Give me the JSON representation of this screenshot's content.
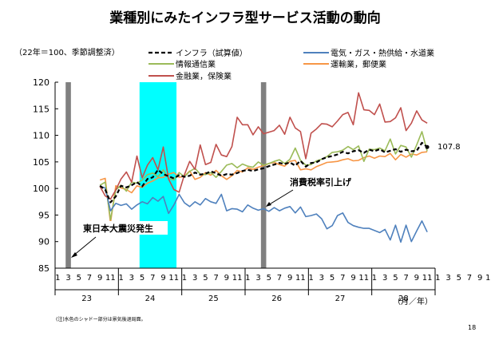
{
  "chart_data": {
    "type": "line",
    "title": "業種別にみたインフラ型サービス活動の動向",
    "subtitle": "（22年＝100、季節調整済）",
    "x_label": "（月／年）",
    "ylim": [
      85,
      120
    ],
    "yticks": [
      "85",
      "90",
      "95",
      "100",
      "105",
      "110",
      "115",
      "120"
    ],
    "month_ticks": [
      "1",
      "3",
      "5",
      "7",
      "9",
      "11",
      "1",
      "3",
      "5",
      "7",
      "9",
      "11",
      "1",
      "3",
      "5",
      "7",
      "9",
      "11",
      "1",
      "3",
      "5",
      "7",
      "9",
      "11",
      "1",
      "3",
      "5",
      "7",
      "9",
      "11",
      "1",
      "3",
      "5",
      "7",
      "9",
      "11",
      "1",
      "3",
      "5",
      "7",
      "9",
      "11"
    ],
    "year_labels": [
      "23",
      "24",
      "25",
      "26",
      "27",
      "28"
    ],
    "grid": false,
    "legend_position": "top",
    "annotations": {
      "earthquake": "東日本大震災発生",
      "tax": "消費税率引上げ",
      "end_value": "107.8"
    },
    "footnote": "(注)水色のシャドー部分は景気後退局面。",
    "page_number": "18",
    "shaded_periods": [
      {
        "kind": "event",
        "color": "#808080",
        "start_index": 2,
        "end_index": 2
      },
      {
        "kind": "recession",
        "color": "#00FFFF",
        "start_index": 16,
        "end_index": 22
      },
      {
        "kind": "event",
        "color": "#808080",
        "start_index": 39,
        "end_index": 39
      }
    ],
    "series": [
      {
        "name": "インフラ（試算値）",
        "color": "#000000",
        "dashed": true,
        "values": [
          100.5,
          99.8,
          97.4,
          98.5,
          100.5,
          100.2,
          100.6,
          101.2,
          100.4,
          101.8,
          102.1,
          103.5,
          102.7,
          102.3,
          101.9,
          102.5,
          102.2,
          102.4,
          103.0,
          102.6,
          102.8,
          103.2,
          102.9,
          102.4,
          102.7,
          102.6,
          102.9,
          103.3,
          103.5,
          103.3,
          103.6,
          103.8,
          104.2,
          104.5,
          104.8,
          104.6,
          104.9,
          104.3,
          105.2,
          104.1,
          104.8,
          104.9,
          105.5,
          105.9,
          106.1,
          106.4,
          106.9,
          106.6,
          107.0,
          107.2,
          106.7,
          107.3,
          107.0,
          107.4,
          106.8,
          107.1,
          107.4,
          106.9,
          107.3,
          107.0,
          107.1,
          108.6,
          107.8
        ]
      },
      {
        "name": "電気・ガス・熱供給・水道業",
        "color": "#4F81BD",
        "dashed": false,
        "values": [
          100.4,
          100.1,
          95.8,
          97.2,
          96.8,
          97.1,
          96.1,
          96.9,
          97.5,
          97.1,
          98.3,
          97.6,
          98.5,
          95.3,
          96.9,
          98.9,
          97.3,
          96.6,
          97.5,
          96.9,
          98.1,
          97.5,
          97.2,
          98.9,
          95.8,
          96.2,
          96.1,
          95.6,
          96.9,
          96.3,
          95.9,
          96.2,
          95.7,
          96.4,
          95.8,
          96.3,
          96.6,
          95.4,
          96.5,
          94.7,
          94.9,
          95.2,
          94.3,
          92.4,
          93.0,
          94.9,
          95.4,
          93.6,
          93.0,
          92.7,
          92.5,
          92.5,
          92.1,
          91.7,
          92.3,
          90.3,
          93.1,
          89.9,
          93.1,
          90.0,
          92.0,
          93.9,
          91.8
        ]
      },
      {
        "name": "情報通信業",
        "color": "#9BBB59",
        "dashed": false,
        "values": [
          100.6,
          101.2,
          94.1,
          99.7,
          100.6,
          99.5,
          101.2,
          101.0,
          101.6,
          102.6,
          102.9,
          102.2,
          103.5,
          101.9,
          101.6,
          103.0,
          102.2,
          103.2,
          103.8,
          102.7,
          102.6,
          103.0,
          102.1,
          103.2,
          104.4,
          104.7,
          103.9,
          104.6,
          104.2,
          104.0,
          105.0,
          104.4,
          104.7,
          105.1,
          105.4,
          104.7,
          105.5,
          107.6,
          105.3,
          104.4,
          104.5,
          105.2,
          105.5,
          106.0,
          106.8,
          106.9,
          107.2,
          107.9,
          107.3,
          108.0,
          105.1,
          107.4,
          107.3,
          107.6,
          107.1,
          109.3,
          106.5,
          108.1,
          107.8,
          105.9,
          108.2,
          110.7,
          107.0
        ]
      },
      {
        "name": "運輸業，郵便業",
        "color": "#F79646",
        "dashed": false,
        "values": [
          101.6,
          101.9,
          93.5,
          100.5,
          100.1,
          99.8,
          99.2,
          100.5,
          100.2,
          101.0,
          101.4,
          102.0,
          102.1,
          102.7,
          103.0,
          102.1,
          102.3,
          103.3,
          101.7,
          102.1,
          103.0,
          102.5,
          103.4,
          102.4,
          101.7,
          102.4,
          103.4,
          103.1,
          103.9,
          103.6,
          104.0,
          104.3,
          104.7,
          104.9,
          104.5,
          104.2,
          105.1,
          105.3,
          103.5,
          103.7,
          103.5,
          104.1,
          104.5,
          104.9,
          105.0,
          105.1,
          105.4,
          105.6,
          105.2,
          105.3,
          105.8,
          106.1,
          105.7,
          106.1,
          106.0,
          106.6,
          105.4,
          106.4,
          105.9,
          106.5,
          106.3,
          106.8,
          106.9
        ]
      },
      {
        "name": "金融業，保険業",
        "color": "#C0504D",
        "dashed": false,
        "values": [
          100.4,
          98.6,
          98.0,
          99.7,
          101.8,
          103.1,
          101.2,
          106.1,
          102.0,
          104.4,
          105.8,
          103.5,
          107.8,
          101.8,
          99.8,
          99.3,
          102.6,
          105.1,
          103.6,
          108.2,
          104.5,
          104.9,
          108.3,
          106.3,
          106.0,
          107.9,
          113.4,
          112.0,
          112.0,
          110.1,
          111.6,
          110.3,
          110.6,
          110.9,
          111.9,
          110.2,
          113.4,
          111.4,
          110.7,
          105.6,
          110.4,
          111.2,
          112.2,
          112.1,
          111.6,
          112.7,
          113.9,
          114.3,
          112.0,
          118.0,
          114.8,
          114.7,
          113.9,
          115.9,
          112.5,
          112.6,
          113.3,
          115.2,
          110.9,
          112.3,
          114.6,
          112.9,
          112.3
        ]
      }
    ]
  }
}
